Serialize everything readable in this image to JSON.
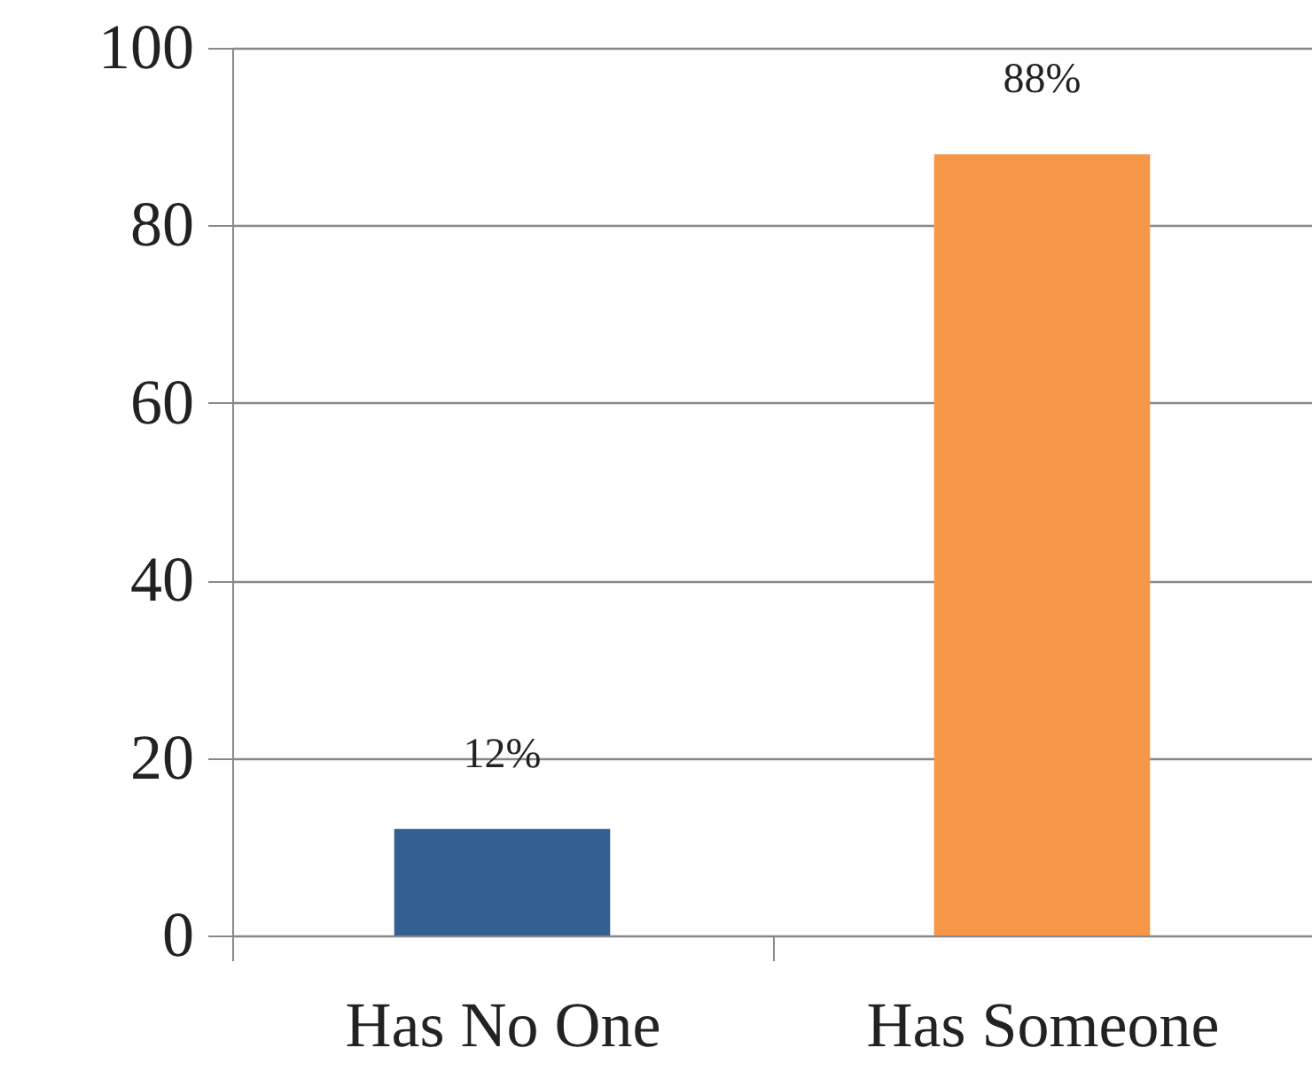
{
  "chart_data": {
    "type": "bar",
    "categories": [
      "Has No One",
      "Has Someone"
    ],
    "values": [
      12,
      88
    ],
    "colors": [
      "#335f91",
      "#f79646"
    ],
    "value_labels": [
      "12%",
      "88%"
    ],
    "ylim": [
      0,
      100
    ],
    "yticks": [
      0,
      20,
      40,
      60,
      80,
      100
    ],
    "grid": "y"
  }
}
